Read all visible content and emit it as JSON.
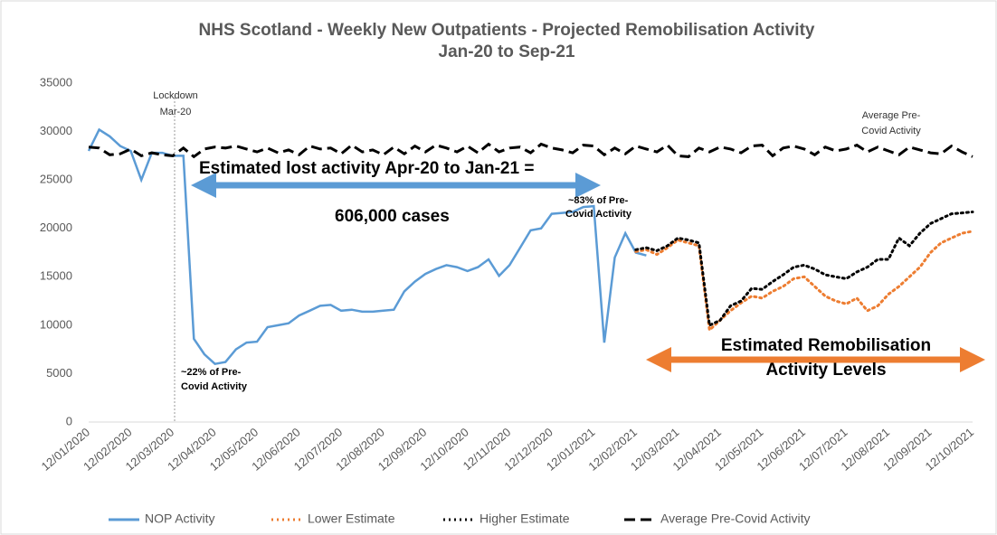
{
  "chart_data": {
    "type": "line",
    "title": "NHS Scotland - Weekly New Outpatients - Projected Remobilisation Activity",
    "subtitle": "Jan-20 to Sep-21",
    "categories": [
      "12/01/2020",
      null,
      null,
      null,
      "12/02/2020",
      null,
      null,
      null,
      "12/03/2020",
      null,
      null,
      null,
      "12/04/2020",
      null,
      null,
      null,
      "12/05/2020",
      null,
      null,
      null,
      "12/06/2020",
      null,
      null,
      null,
      "12/07/2020",
      null,
      null,
      null,
      "12/08/2020",
      null,
      null,
      null,
      "12/09/2020",
      null,
      null,
      null,
      "12/10/2020",
      null,
      null,
      null,
      "12/11/2020",
      null,
      null,
      null,
      "12/12/2020",
      null,
      null,
      null,
      "12/01/2021",
      null,
      null,
      null,
      "12/02/2021",
      null,
      null,
      null,
      "12/03/2021",
      null,
      null,
      null,
      "12/04/2021",
      null,
      null,
      null,
      "12/05/2021",
      null,
      null,
      null,
      "12/06/2021",
      null,
      null,
      null,
      "12/07/2021",
      null,
      null,
      null,
      "12/08/2021",
      null,
      null,
      null,
      "12/09/2021",
      null,
      null,
      null,
      "12/10/2021"
    ],
    "series": [
      {
        "name": "NOP Activity",
        "color": "#5b9bd5",
        "style": "solid",
        "values": [
          28000,
          30200,
          29500,
          28500,
          28000,
          25000,
          27800,
          27800,
          27500,
          27500,
          8600,
          7000,
          6000,
          6200,
          7500,
          8200,
          8300,
          9800,
          10000,
          10200,
          11000,
          11500,
          12000,
          12100,
          11500,
          11600,
          11400,
          11400,
          11500,
          11600,
          13500,
          14500,
          15300,
          15800,
          16200,
          16000,
          15600,
          16000,
          16800,
          15100,
          16200,
          18000,
          19800,
          20000,
          21500,
          21600,
          21700,
          22200,
          22300,
          8200,
          17000,
          19500,
          17500,
          17200,
          null,
          null,
          null,
          null,
          null,
          null,
          null,
          null,
          null,
          null,
          null,
          null,
          null,
          null,
          null,
          null,
          null,
          null,
          null,
          null,
          null,
          null,
          null,
          null,
          null,
          null,
          null,
          null,
          null,
          null,
          null
        ]
      },
      {
        "name": "Lower Estimate",
        "color": "#ed7d31",
        "style": "dotted",
        "values": [
          null,
          null,
          null,
          null,
          null,
          null,
          null,
          null,
          null,
          null,
          null,
          null,
          null,
          null,
          null,
          null,
          null,
          null,
          null,
          null,
          null,
          null,
          null,
          null,
          null,
          null,
          null,
          null,
          null,
          null,
          null,
          null,
          null,
          null,
          null,
          null,
          null,
          null,
          null,
          null,
          null,
          null,
          null,
          null,
          null,
          null,
          null,
          null,
          null,
          null,
          null,
          null,
          17600,
          17800,
          17300,
          18000,
          18800,
          18500,
          18200,
          9500,
          10500,
          11500,
          12300,
          13000,
          12800,
          13500,
          14000,
          14800,
          15000,
          14000,
          13000,
          12500,
          12200,
          12800,
          11500,
          12000,
          13200,
          14000,
          15000,
          16000,
          17500,
          18500,
          19000,
          19500,
          19700
        ]
      },
      {
        "name": "Higher Estimate",
        "color": "#000000",
        "style": "dotted",
        "values": [
          null,
          null,
          null,
          null,
          null,
          null,
          null,
          null,
          null,
          null,
          null,
          null,
          null,
          null,
          null,
          null,
          null,
          null,
          null,
          null,
          null,
          null,
          null,
          null,
          null,
          null,
          null,
          null,
          null,
          null,
          null,
          null,
          null,
          null,
          null,
          null,
          null,
          null,
          null,
          null,
          null,
          null,
          null,
          null,
          null,
          null,
          null,
          null,
          null,
          null,
          null,
          null,
          17800,
          18000,
          17700,
          18200,
          19000,
          18800,
          18500,
          10000,
          10500,
          12000,
          12500,
          13800,
          13700,
          14500,
          15200,
          16000,
          16200,
          15800,
          15200,
          15000,
          14800,
          15500,
          16000,
          16800,
          16800,
          19000,
          18200,
          19500,
          20500,
          21000,
          21500,
          21600,
          21700
        ]
      },
      {
        "name": "Average Pre-Covid Activity",
        "color": "#000000",
        "style": "dashed",
        "values": [
          28400,
          28300,
          27600,
          27700,
          28200,
          27500,
          27800,
          27600,
          27500,
          28300,
          27400,
          28200,
          28400,
          28300,
          28500,
          28200,
          27900,
          28300,
          27800,
          28100,
          27600,
          28500,
          28200,
          28300,
          27700,
          28600,
          27900,
          28100,
          27600,
          28400,
          27700,
          28500,
          27900,
          28600,
          28300,
          27900,
          28500,
          27800,
          28700,
          27900,
          28300,
          28400,
          27800,
          28700,
          28300,
          28100,
          27800,
          28600,
          28500,
          27600,
          28300,
          27700,
          28500,
          28200,
          27900,
          28600,
          27500,
          27400,
          28300,
          27900,
          28400,
          28200,
          27800,
          28500,
          28600,
          27500,
          28300,
          28500,
          28200,
          27600,
          28400,
          28000,
          28200,
          28600,
          27900,
          28400,
          28000,
          27600,
          28400,
          28100,
          27800,
          27700,
          28500,
          27900,
          27400
        ]
      }
    ],
    "ylim": [
      0,
      35000
    ],
    "yticks": [
      0,
      5000,
      10000,
      15000,
      20000,
      25000,
      30000,
      35000
    ],
    "grid": false,
    "legend": "bottom",
    "annotations": [
      "Lockdown",
      "Mar-20",
      "Estimated lost activity Apr-20 to Jan-21 =",
      "606,000 cases",
      "~83% of Pre-",
      "Covid Activity",
      "~22% of Pre-",
      "Covid Activity",
      "Average Pre-",
      "Covid Activity",
      "Estimated Remobilisation",
      "Activity Levels"
    ]
  }
}
